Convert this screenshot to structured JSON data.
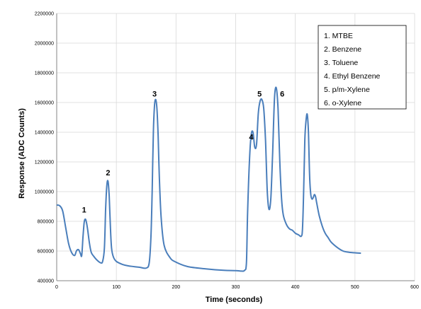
{
  "chart_data": {
    "type": "line",
    "title": "",
    "xlabel": "Time (seconds)",
    "ylabel": "Response (ADC Counts)",
    "xlim": [
      0,
      600
    ],
    "ylim": [
      400000,
      2200000
    ],
    "xticks": [
      0,
      100,
      200,
      300,
      400,
      500,
      600
    ],
    "yticks": [
      400000,
      600000,
      800000,
      1000000,
      1200000,
      1400000,
      1600000,
      1800000,
      2000000,
      2200000
    ],
    "xtick_labels": [
      "0",
      "100",
      "200",
      "300",
      "400",
      "500",
      "600"
    ],
    "ytick_labels": [
      "400000",
      "600000",
      "800000",
      "1000000",
      "1200000",
      "1400000",
      "1600000",
      "1800000",
      "2000000",
      "2200000"
    ],
    "grid": "vertical and horizontal",
    "legend_position": "top-right",
    "series_color": "#4a7ebb",
    "legend_entries": [
      "1. MTBE",
      "2. Benzene",
      "3. Toluene",
      "4. Ethyl Benzene",
      "5. p/m-Xylene",
      "6. o-Xylene"
    ],
    "peak_labels": [
      {
        "text": "1",
        "x": 46,
        "y": 860000
      },
      {
        "text": "2",
        "x": 86,
        "y": 1110000
      },
      {
        "text": "3",
        "x": 164,
        "y": 1640000
      },
      {
        "text": "4",
        "x": 326,
        "y": 1350000
      },
      {
        "text": "5",
        "x": 340,
        "y": 1640000
      },
      {
        "text": "6",
        "x": 378,
        "y": 1640000
      }
    ],
    "series": [
      {
        "x": [
          0,
          5,
          10,
          15,
          20,
          25,
          30,
          33,
          36,
          38,
          40,
          42,
          44,
          46,
          48,
          50,
          52,
          55,
          58,
          62,
          66,
          70,
          74,
          77,
          80,
          82,
          84,
          86,
          88,
          90,
          92,
          95,
          100,
          110,
          120,
          130,
          140,
          150,
          155,
          158,
          160,
          162,
          164,
          166,
          168,
          170,
          172,
          175,
          180,
          190,
          200,
          220,
          250,
          280,
          300,
          310,
          315,
          318,
          320,
          323,
          326,
          329,
          332,
          335,
          338,
          341,
          344,
          347,
          350,
          353,
          356,
          359,
          362,
          365,
          368,
          371,
          374,
          377,
          380,
          385,
          390,
          395,
          400,
          405,
          410,
          412,
          414,
          416,
          418,
          420,
          422,
          424,
          426,
          428,
          430,
          432,
          434,
          436,
          440,
          445,
          450,
          455,
          460,
          470,
          480,
          490,
          500,
          510
        ],
        "y": [
          910000,
          905000,
          870000,
          760000,
          650000,
          590000,
          570000,
          600000,
          610000,
          600000,
          580000,
          570000,
          690000,
          790000,
          815000,
          790000,
          740000,
          650000,
          590000,
          565000,
          545000,
          530000,
          520000,
          530000,
          620000,
          880000,
          1040000,
          1070000,
          970000,
          760000,
          620000,
          560000,
          530000,
          510000,
          500000,
          495000,
          490000,
          485000,
          520000,
          700000,
          1000000,
          1400000,
          1580000,
          1620000,
          1560000,
          1380000,
          1100000,
          830000,
          640000,
          555000,
          525000,
          495000,
          480000,
          470000,
          468000,
          465000,
          470000,
          520000,
          850000,
          1200000,
          1380000,
          1400000,
          1300000,
          1320000,
          1530000,
          1610000,
          1620000,
          1560000,
          1350000,
          1000000,
          880000,
          960000,
          1260000,
          1620000,
          1700000,
          1560000,
          1200000,
          950000,
          840000,
          780000,
          750000,
          740000,
          720000,
          710000,
          700000,
          750000,
          1000000,
          1350000,
          1480000,
          1520000,
          1400000,
          1100000,
          980000,
          950000,
          960000,
          980000,
          965000,
          920000,
          840000,
          770000,
          720000,
          690000,
          660000,
          625000,
          600000,
          592000,
          588000,
          585000
        ]
      }
    ]
  }
}
